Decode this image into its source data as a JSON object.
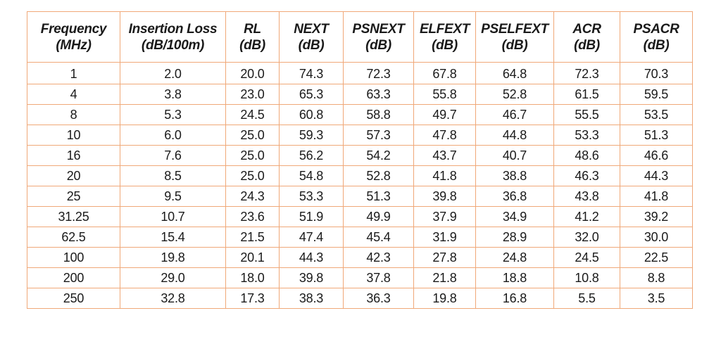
{
  "table": {
    "headers": [
      {
        "line1": "Frequency",
        "line2": "(MHz)"
      },
      {
        "line1": "Insertion Loss",
        "line2": "(dB/100m)"
      },
      {
        "line1": "RL",
        "line2": "(dB)"
      },
      {
        "line1": "NEXT",
        "line2": "(dB)"
      },
      {
        "line1": "PSNEXT",
        "line2": "(dB)"
      },
      {
        "line1": "ELFEXT",
        "line2": "(dB)"
      },
      {
        "line1": "PSELFEXT",
        "line2": "(dB)"
      },
      {
        "line1": "ACR",
        "line2": "(dB)"
      },
      {
        "line1": "PSACR",
        "line2": "(dB)"
      }
    ],
    "rows": [
      [
        "1",
        "2.0",
        "20.0",
        "74.3",
        "72.3",
        "67.8",
        "64.8",
        "72.3",
        "70.3"
      ],
      [
        "4",
        "3.8",
        "23.0",
        "65.3",
        "63.3",
        "55.8",
        "52.8",
        "61.5",
        "59.5"
      ],
      [
        "8",
        "5.3",
        "24.5",
        "60.8",
        "58.8",
        "49.7",
        "46.7",
        "55.5",
        "53.5"
      ],
      [
        "10",
        "6.0",
        "25.0",
        "59.3",
        "57.3",
        "47.8",
        "44.8",
        "53.3",
        "51.3"
      ],
      [
        "16",
        "7.6",
        "25.0",
        "56.2",
        "54.2",
        "43.7",
        "40.7",
        "48.6",
        "46.6"
      ],
      [
        "20",
        "8.5",
        "25.0",
        "54.8",
        "52.8",
        "41.8",
        "38.8",
        "46.3",
        "44.3"
      ],
      [
        "25",
        "9.5",
        "24.3",
        "53.3",
        "51.3",
        "39.8",
        "36.8",
        "43.8",
        "41.8"
      ],
      [
        "31.25",
        "10.7",
        "23.6",
        "51.9",
        "49.9",
        "37.9",
        "34.9",
        "41.2",
        "39.2"
      ],
      [
        "62.5",
        "15.4",
        "21.5",
        "47.4",
        "45.4",
        "31.9",
        "28.9",
        "32.0",
        "30.0"
      ],
      [
        "100",
        "19.8",
        "20.1",
        "44.3",
        "42.3",
        "27.8",
        "24.8",
        "24.5",
        "22.5"
      ],
      [
        "200",
        "29.0",
        "18.0",
        "39.8",
        "37.8",
        "21.8",
        "18.8",
        "10.8",
        "8.8"
      ],
      [
        "250",
        "32.8",
        "17.3",
        "38.3",
        "36.3",
        "19.8",
        "16.8",
        "5.5",
        "3.5"
      ]
    ]
  },
  "colors": {
    "border": "#f0a878",
    "text": "#1a1a1a",
    "background": "#ffffff"
  }
}
